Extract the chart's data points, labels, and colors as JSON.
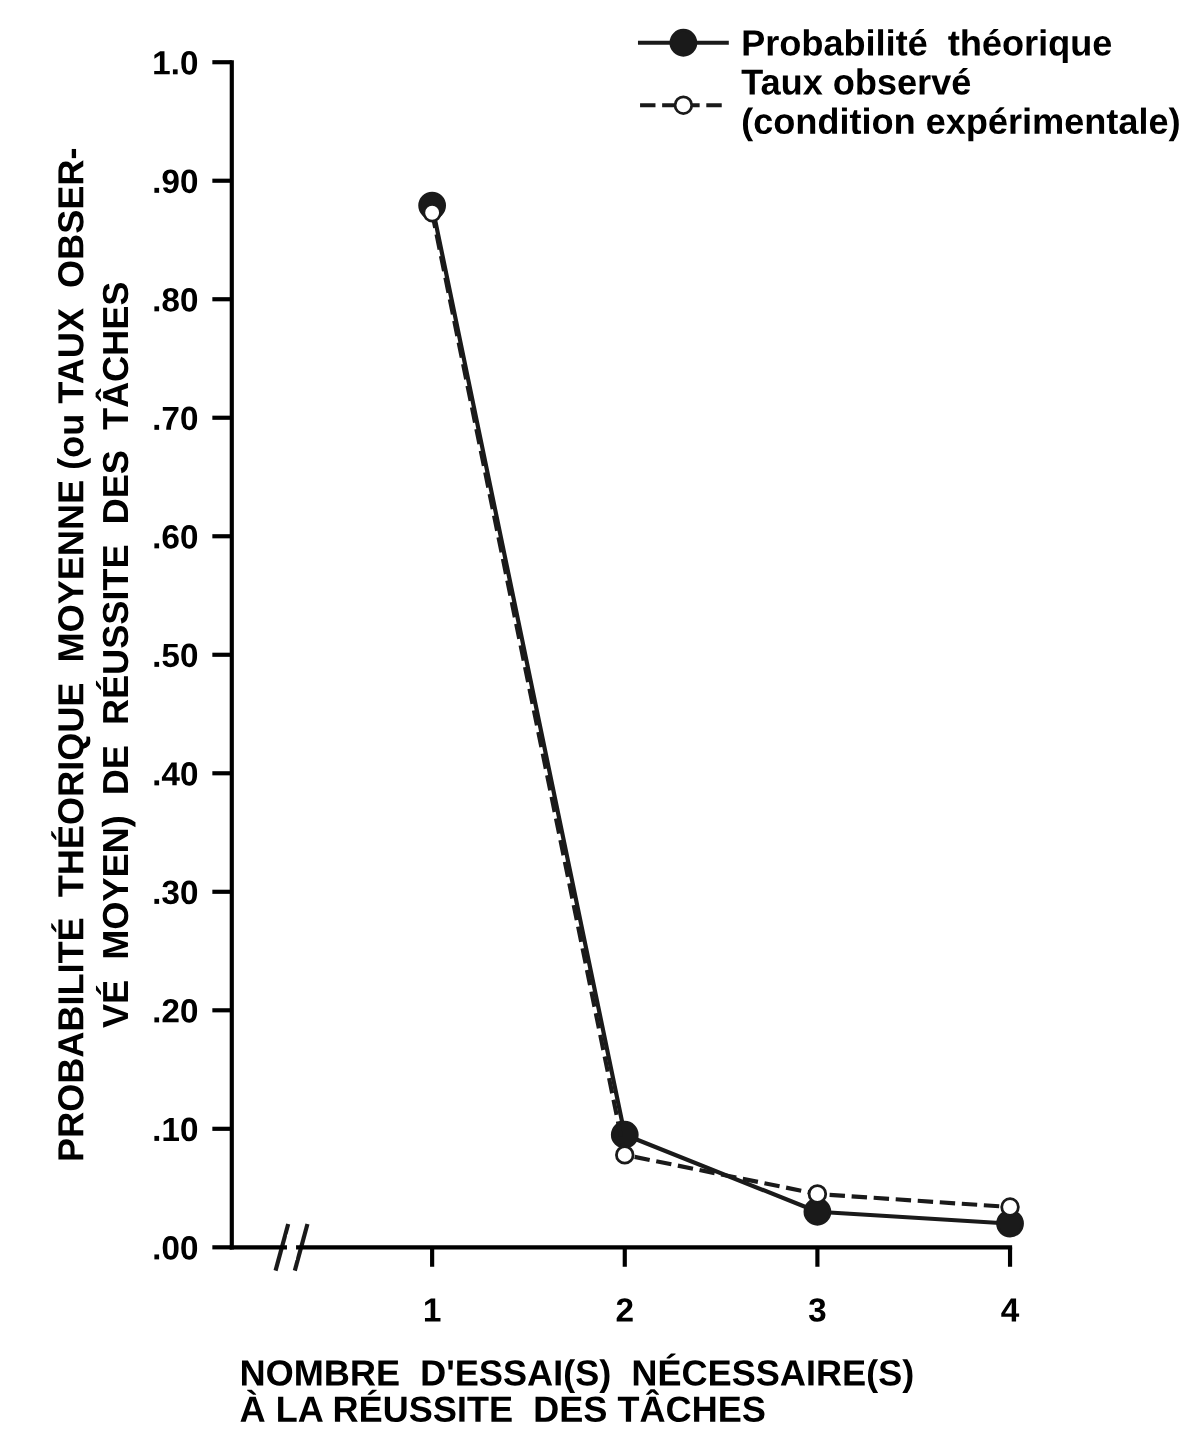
{
  "chart_data": {
    "type": "line",
    "xlabel": "NOMBRE  D'ESSAI(S)  NÉCESSAIRE(S)\nÀ LA RÉUSSITE  DES TÂCHES",
    "ylabel": "PROBABILITÉ  THÉORIQUE  MOYENNE (ou TAUX  OBSER-\nVÉ  MOYEN)  DE  RÉUSSITE  DES  TÂCHES",
    "categories": [
      "1",
      "2",
      "3",
      "4"
    ],
    "series": [
      {
        "name": "Probabilité  théorique",
        "color": "#1a1a1a",
        "values": [
          0.879,
          0.095,
          0.03,
          0.02
        ],
        "line_style": "solid",
        "marker": "circle"
      },
      {
        "name": "Taux observé\n(condition expérimentale)",
        "color": "#1a1a1a",
        "values": [
          0.873,
          0.078,
          0.045,
          0.034
        ],
        "line_style": "dashed",
        "marker": "circle"
      }
    ],
    "ylim": [
      0,
      1.0
    ],
    "yticks": [
      {
        "value": 0,
        "label": ".00"
      },
      {
        "value": 0.1,
        "label": ".10"
      },
      {
        "value": 0.2,
        "label": ".20"
      },
      {
        "value": 0.3,
        "label": ".30"
      },
      {
        "value": 0.4,
        "label": ".40"
      },
      {
        "value": 0.5,
        "label": ".50"
      },
      {
        "value": 0.6,
        "label": ".60"
      },
      {
        "value": 0.7,
        "label": ".70"
      },
      {
        "value": 0.8,
        "label": ".80"
      },
      {
        "value": 0.9,
        "label": ".90"
      },
      {
        "value": 1.0,
        "label": "1.0"
      }
    ],
    "grid": false,
    "legend": "top right"
  }
}
